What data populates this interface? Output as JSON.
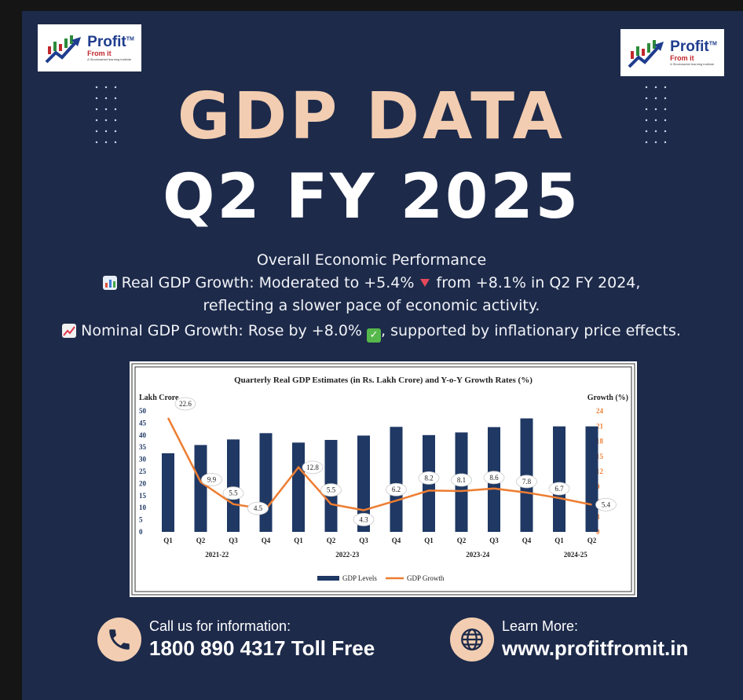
{
  "logo": {
    "name": "Profit",
    "tm": "TM",
    "sub": "From it",
    "tagline": "A Stockmarket learning institute"
  },
  "title": {
    "line1": "GDP DATA",
    "line2": "Q2 FY 2025"
  },
  "info": {
    "heading": "Overall Economic Performance",
    "real_prefix": "Real GDP Growth: Moderated to +5.4%",
    "real_suffix": "from +8.1% in Q2 FY 2024,",
    "real_line2": "reflecting a slower pace of economic activity.",
    "nominal_prefix": "Nominal GDP Growth: Rose by +8.0%",
    "nominal_suffix": ", supported by inflationary price effects.",
    "icons": [
      "bar-chart-emoji-icon",
      "down-triangle-icon",
      "trend-up-emoji-icon",
      "check-mark-emoji-icon"
    ]
  },
  "chart_data": {
    "type": "bar",
    "title": "Quarterly Real GDP Estimates (in Rs. Lakh Crore) and Y-o-Y Growth Rates (%)",
    "ylabel_left": "Lakh Crore",
    "ylabel_right": "Growth (%)",
    "ylim_left": [
      0,
      50
    ],
    "ylim_right": [
      0,
      24
    ],
    "yticks_left": [
      0,
      5,
      10,
      15,
      20,
      25,
      30,
      35,
      40,
      45,
      50
    ],
    "yticks_right": [
      0,
      3,
      6,
      9,
      12,
      15,
      18,
      21,
      24
    ],
    "categories": [
      "Q1",
      "Q2",
      "Q3",
      "Q4",
      "Q1",
      "Q2",
      "Q3",
      "Q4",
      "Q1",
      "Q2",
      "Q3",
      "Q4",
      "Q1",
      "Q2"
    ],
    "groups": [
      {
        "label": "2021-22",
        "span": 4
      },
      {
        "label": "2022-23",
        "span": 4
      },
      {
        "label": "2023-24",
        "span": 4
      },
      {
        "label": "2024-25",
        "span": 2
      }
    ],
    "series": [
      {
        "name": "GDP Levels",
        "type": "bar",
        "axis": "left",
        "color": "#1f3864",
        "values": [
          32.5,
          35.9,
          38.2,
          40.8,
          36.9,
          38.0,
          39.8,
          43.4,
          40.0,
          41.1,
          43.3,
          46.9,
          43.6,
          43.6
        ]
      },
      {
        "name": "GDP Growth",
        "type": "line",
        "axis": "right",
        "color": "#ed7d31",
        "values": [
          22.6,
          9.9,
          5.5,
          4.5,
          12.8,
          5.5,
          4.3,
          6.2,
          8.2,
          8.1,
          8.6,
          7.8,
          6.7,
          5.4
        ],
        "labels": [
          "22.6",
          "9.9",
          "5.5",
          "4.5",
          "12.8",
          "5.5",
          "4.3",
          "6.2",
          "8.2",
          "8.1",
          "8.6",
          "7.8",
          "6.7",
          "5.4"
        ]
      }
    ],
    "legend": "bottom-center",
    "grid": false
  },
  "contact": {
    "call_label": "Call us for information:",
    "call_value": "1800 890 4317 Toll Free",
    "web_label": "Learn More:",
    "web_value": "www.profitfromit.in"
  },
  "colors": {
    "background": "#1d2a4a",
    "title_accent": "#f2cdb1",
    "icon_circle": "#f2cdb1"
  }
}
